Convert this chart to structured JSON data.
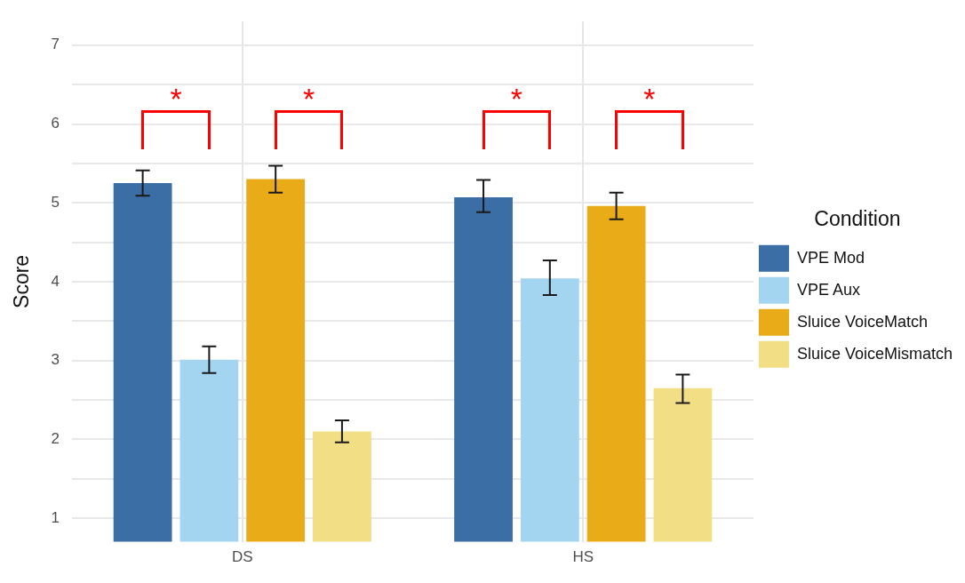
{
  "chart_data": {
    "type": "bar",
    "ylabel": "Score",
    "legend_title": "Condition",
    "categories": [
      "DS",
      "HS"
    ],
    "series": [
      {
        "name": "VPE Mod",
        "color": "#3b6ea5",
        "values": [
          5.25,
          5.07
        ],
        "errors": [
          [
            5.09,
            5.41
          ],
          [
            4.88,
            5.29
          ]
        ]
      },
      {
        "name": "VPE Aux",
        "color": "#a3d5f0",
        "values": [
          3.01,
          4.04
        ],
        "errors": [
          [
            2.84,
            3.18
          ],
          [
            3.83,
            4.27
          ]
        ]
      },
      {
        "name": "Sluice VoiceMatch",
        "color": "#e9ab17",
        "values": [
          5.3,
          4.96
        ],
        "errors": [
          [
            5.13,
            5.47
          ],
          [
            4.79,
            5.13
          ]
        ]
      },
      {
        "name": "Sluice VoiceMismatch",
        "color": "#f2df85",
        "values": [
          2.1,
          2.65
        ],
        "errors": [
          [
            1.96,
            2.24
          ],
          [
            2.46,
            2.82
          ]
        ]
      }
    ],
    "ylim": [
      0.7,
      7.3
    ],
    "yticks": [
      1,
      {
        "value": 1.5,
        "label": null
      },
      2,
      {
        "value": 2.5,
        "label": null
      },
      3,
      {
        "value": 3.5,
        "label": null
      },
      4,
      {
        "value": 4.5,
        "label": null
      },
      5,
      {
        "value": 5.5,
        "label": null
      },
      6,
      {
        "value": 6.5,
        "label": null
      },
      7
    ],
    "grid": true,
    "legend": "right",
    "annotations": [
      "*",
      "*",
      "*",
      "*"
    ]
  }
}
